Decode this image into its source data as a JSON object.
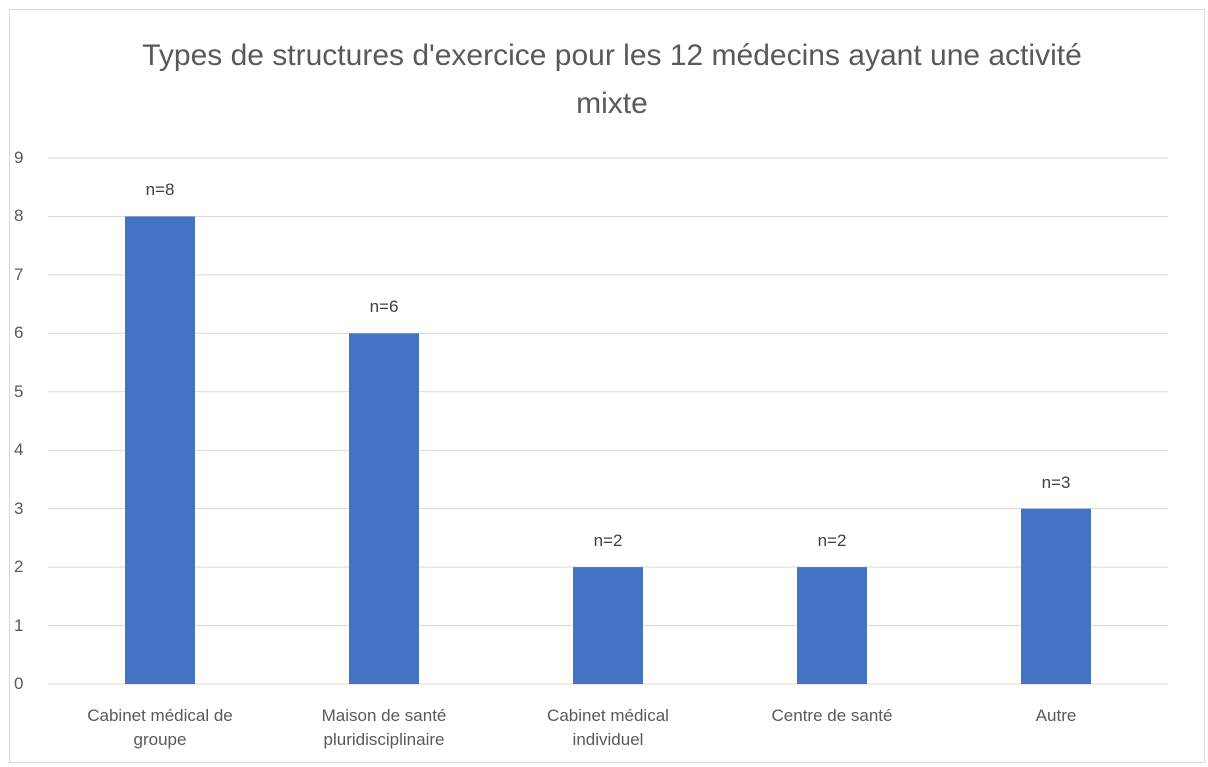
{
  "chart_data": {
    "type": "bar",
    "title": "Types de structures d'exercice pour les 12 médecins ayant une activité mixte",
    "categories": [
      "Cabinet médical de groupe",
      "Maison de santé pluridisciplinaire",
      "Cabinet médical individuel",
      "Centre de santé",
      "Autre"
    ],
    "values": [
      8,
      6,
      2,
      2,
      3
    ],
    "value_labels": [
      "n=8",
      "n=6",
      "n=2",
      "n=2",
      "n=3"
    ],
    "color": "#4472c4",
    "ylim": [
      0,
      9
    ],
    "yticks": [
      0,
      1,
      2,
      3,
      4,
      5,
      6,
      7,
      8,
      9
    ],
    "grid": true
  }
}
